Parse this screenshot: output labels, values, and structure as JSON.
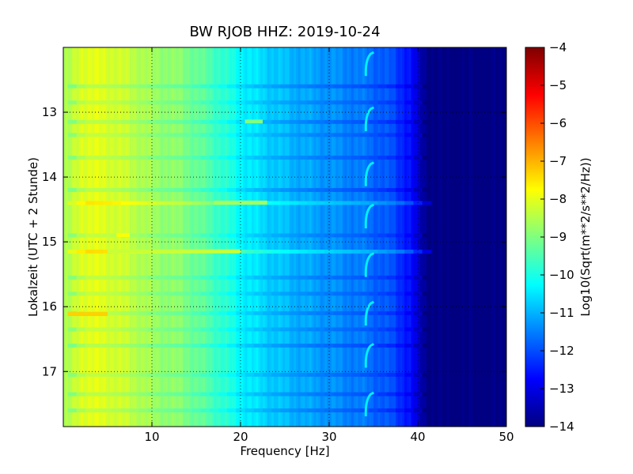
{
  "chart_data": {
    "type": "heatmap",
    "title": "BW RJOB HHZ: 2019-10-24",
    "xlabel": "Frequency [Hz]",
    "ylabel": "Lokalzeit (UTC + 2 Stunde)",
    "xlim": [
      0,
      50
    ],
    "ylim": [
      17.85,
      12.0
    ],
    "x_ticks": [
      10,
      20,
      30,
      40,
      50
    ],
    "y_ticks": [
      13,
      14,
      15,
      16,
      17
    ],
    "grid": true,
    "colormap": "jet",
    "colorbar": {
      "label": "Log10(Sqrt(m**2/s**2/Hz))",
      "range": [
        -14,
        -4
      ],
      "ticks": [
        -4,
        -5,
        -6,
        -7,
        -8,
        -9,
        -10,
        -11,
        -12,
        -13,
        -14
      ]
    },
    "spectral_profile": [
      {
        "frequency": 0.5,
        "value": -8.6
      },
      {
        "frequency": 2,
        "value": -8.0
      },
      {
        "frequency": 5,
        "value": -8.1
      },
      {
        "frequency": 8,
        "value": -8.4
      },
      {
        "frequency": 10,
        "value": -8.7
      },
      {
        "frequency": 13,
        "value": -8.9
      },
      {
        "frequency": 16,
        "value": -9.4
      },
      {
        "frequency": 18,
        "value": -9.8
      },
      {
        "frequency": 20,
        "value": -10.3
      },
      {
        "frequency": 23,
        "value": -10.7
      },
      {
        "frequency": 26,
        "value": -11.0
      },
      {
        "frequency": 30,
        "value": -11.3
      },
      {
        "frequency": 34,
        "value": -11.6
      },
      {
        "frequency": 37,
        "value": -12.0
      },
      {
        "frequency": 39,
        "value": -12.6
      },
      {
        "frequency": 40.5,
        "value": -13.7
      },
      {
        "frequency": 42,
        "value": -14.0
      },
      {
        "frequency": 50,
        "value": -14.0
      }
    ],
    "noise_bands": [
      {
        "time": 12.6,
        "value_offset": -0.45
      },
      {
        "time": 12.85,
        "value_offset": -0.3
      },
      {
        "time": 13.15,
        "value_offset": -0.4
      },
      {
        "time": 13.35,
        "value_offset": -0.3
      },
      {
        "time": 13.7,
        "value_offset": -0.35
      },
      {
        "time": 14.2,
        "value_offset": -0.45
      },
      {
        "time": 14.4,
        "value_offset": 0.5
      },
      {
        "time": 14.9,
        "value_offset": -0.3
      },
      {
        "time": 15.15,
        "value_offset": 0.6
      },
      {
        "time": 15.55,
        "value_offset": -0.35
      },
      {
        "time": 15.8,
        "value_offset": -0.3
      },
      {
        "time": 16.1,
        "value_offset": -0.35
      },
      {
        "time": 16.35,
        "value_offset": -0.3
      },
      {
        "time": 16.6,
        "value_offset": -0.45
      },
      {
        "time": 17.05,
        "value_offset": -0.35
      },
      {
        "time": 17.35,
        "value_offset": -0.4
      },
      {
        "time": 17.6,
        "value_offset": -0.4
      }
    ],
    "features": [
      {
        "label": "strong line",
        "time": 16.12,
        "freq_range": [
          0.5,
          5.0
        ],
        "value": -7.3
      },
      {
        "label": "line",
        "time": 14.4,
        "freq_range": [
          17.0,
          23.0
        ],
        "value": -8.6
      },
      {
        "label": "line",
        "time": 15.15,
        "freq_range": [
          5.0,
          20.0
        ],
        "value": -8.3
      },
      {
        "label": "line",
        "time": 13.15,
        "freq_range": [
          20.5,
          22.5
        ],
        "value": -9.0
      },
      {
        "label": "line",
        "time": 14.9,
        "freq_range": [
          6.0,
          7.5
        ],
        "value": -7.8
      }
    ],
    "periodic_hook_freq_hz": 34.5,
    "periodic_hook_times": [
      12.1,
      12.95,
      13.8,
      14.45,
      15.2,
      15.95,
      16.6,
      17.35
    ]
  }
}
